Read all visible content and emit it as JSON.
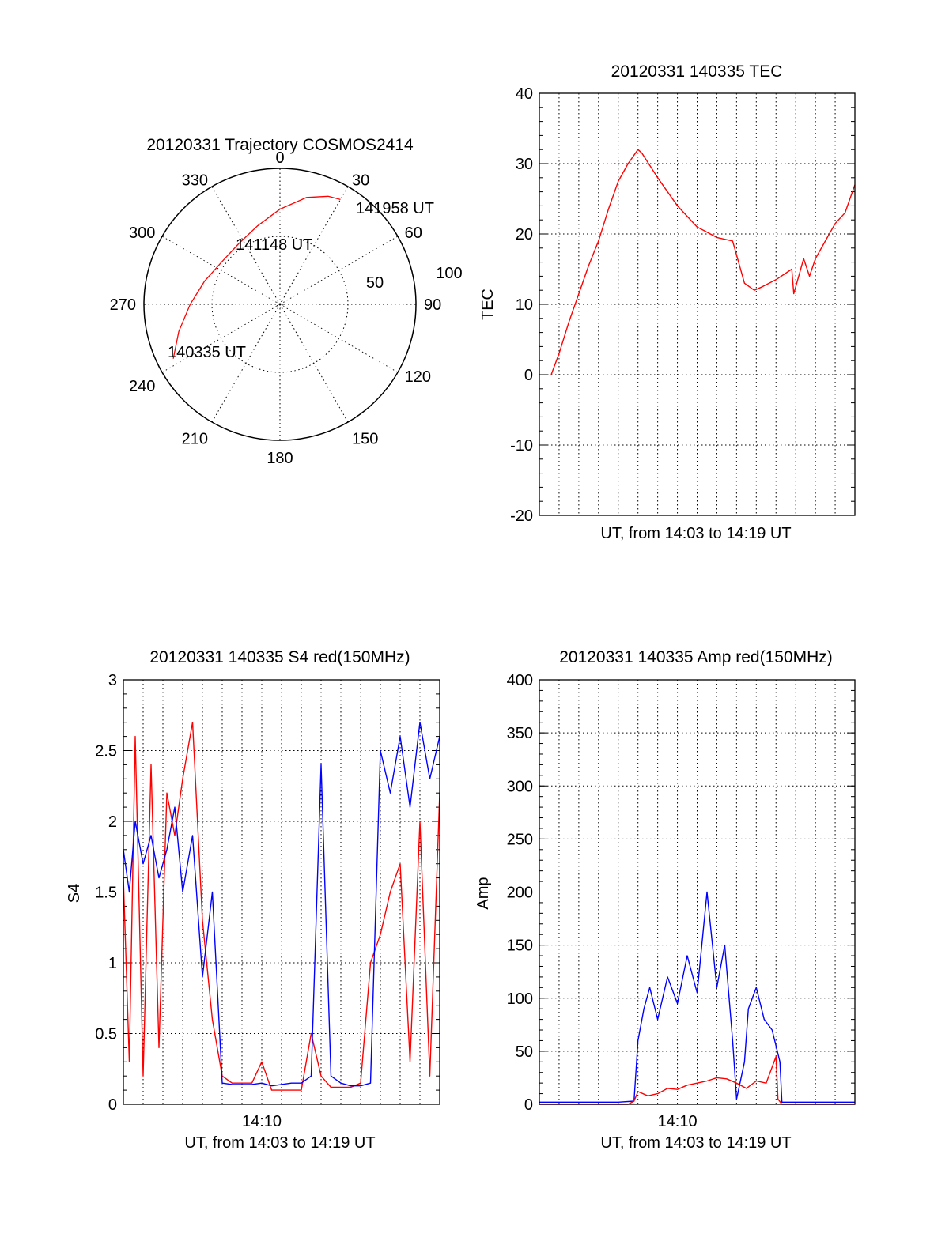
{
  "colors": {
    "red": "#ff0000",
    "blue": "#0000ff",
    "axis": "#000000",
    "background": "#ffffff"
  },
  "chart_data": [
    {
      "id": "trajectory",
      "type": "polar",
      "title": "20120331 Trajectory COSMOS2414",
      "azimuth_labels": [
        "0",
        "30",
        "60",
        "90",
        "120",
        "150",
        "180",
        "210",
        "240",
        "270",
        "300",
        "330"
      ],
      "radial_labels": [
        "50",
        "100"
      ],
      "radial_range": [
        0,
        100
      ],
      "grid": true,
      "series": [
        {
          "color": "red",
          "points": [
            {
              "az": 243,
              "r": 88
            },
            {
              "az": 255,
              "r": 77
            },
            {
              "az": 270,
              "r": 66
            },
            {
              "az": 287,
              "r": 58
            },
            {
              "az": 306,
              "r": 53
            },
            {
              "az": 326,
              "r": 54
            },
            {
              "az": 344,
              "r": 60
            },
            {
              "az": 360,
              "r": 70
            },
            {
              "az": 374,
              "r": 81
            },
            {
              "az": 384,
              "r": 87
            },
            {
              "az": 390,
              "r": 89
            }
          ]
        }
      ],
      "annotations": [
        "141958 UT",
        "141148 UT",
        "140335 UT"
      ]
    },
    {
      "id": "tec",
      "type": "line",
      "title": "20120331 140335 TEC",
      "xlabel": "UT, from 14:03 to 14:19 UT",
      "ylabel": "TEC",
      "ylim": [
        -20,
        40
      ],
      "yticks": [
        "40",
        "30",
        "20",
        "10",
        "0",
        "-10",
        "-20"
      ],
      "xlim_minutes": [
        0,
        16
      ],
      "grid": true,
      "series": [
        {
          "color": "red",
          "x": [
            0.6,
            1.0,
            1.5,
            2.0,
            2.5,
            3.0,
            3.5,
            4.0,
            4.5,
            5.0,
            5.2,
            6.0,
            7.0,
            8.0,
            9.0,
            9.8,
            10.4,
            10.9,
            11.3,
            12.0,
            12.8,
            12.9,
            13.2,
            13.4,
            13.7,
            14.0,
            14.5,
            15.0,
            15.5,
            16.0
          ],
          "y": [
            0.0,
            3.0,
            7.5,
            11.5,
            15.5,
            19.0,
            23.5,
            27.5,
            30.0,
            32.0,
            31.5,
            28.0,
            24.0,
            21.0,
            19.5,
            19.0,
            13.0,
            12.0,
            12.5,
            13.5,
            15.0,
            11.5,
            14.5,
            16.5,
            14.0,
            16.5,
            19.0,
            21.5,
            23.0,
            27.0
          ]
        }
      ]
    },
    {
      "id": "s4",
      "type": "line",
      "title": "20120331 140335 S4 red(150MHz)",
      "xlabel": "UT, from 14:03 to 14:19 UT",
      "ylabel": "S4",
      "ylim": [
        0,
        3
      ],
      "yticks": [
        "3",
        "2.5",
        "2",
        "1.5",
        "1",
        "0.5",
        "0"
      ],
      "xtick_labels": [
        "14:10"
      ],
      "xlim_minutes": [
        0,
        16
      ],
      "grid": true,
      "series": [
        {
          "color": "red",
          "x": [
            0.0,
            0.3,
            0.6,
            1.0,
            1.4,
            1.8,
            2.2,
            2.6,
            3.0,
            3.5,
            4.0,
            4.5,
            5.0,
            5.5,
            6.0,
            6.5,
            7.0,
            7.5,
            8.0,
            8.5,
            9.0,
            9.5,
            10.0,
            10.5,
            11.0,
            11.5,
            12.0,
            12.5,
            13.0,
            13.5,
            14.0,
            14.5,
            15.0,
            15.5,
            16.0
          ],
          "y": [
            1.6,
            0.3,
            2.6,
            0.2,
            2.4,
            0.4,
            2.2,
            1.9,
            2.3,
            2.7,
            1.3,
            0.6,
            0.2,
            0.15,
            0.15,
            0.15,
            0.3,
            0.1,
            0.1,
            0.1,
            0.1,
            0.5,
            0.2,
            0.12,
            0.12,
            0.12,
            0.15,
            1.0,
            1.2,
            1.5,
            1.7,
            0.3,
            2.0,
            0.2,
            2.2
          ]
        },
        {
          "color": "blue",
          "x": [
            0.0,
            0.3,
            0.6,
            1.0,
            1.4,
            1.8,
            2.2,
            2.6,
            3.0,
            3.5,
            4.0,
            4.5,
            5.0,
            5.5,
            6.0,
            6.5,
            7.0,
            7.5,
            8.0,
            8.5,
            9.0,
            9.5,
            10.0,
            10.5,
            11.0,
            11.5,
            12.0,
            12.5,
            13.0,
            13.5,
            14.0,
            14.5,
            15.0,
            15.5,
            16.0
          ],
          "y": [
            1.8,
            1.5,
            2.0,
            1.7,
            1.9,
            1.6,
            1.8,
            2.1,
            1.5,
            1.9,
            0.9,
            1.5,
            0.15,
            0.14,
            0.14,
            0.14,
            0.15,
            0.13,
            0.14,
            0.15,
            0.15,
            0.2,
            2.4,
            0.2,
            0.15,
            0.13,
            0.13,
            0.15,
            2.5,
            2.2,
            2.6,
            2.1,
            2.7,
            2.3,
            2.6
          ]
        }
      ]
    },
    {
      "id": "amp",
      "type": "line",
      "title": "20120331 140335 Amp red(150MHz)",
      "xlabel": "UT, from 14:03 to 14:19 UT",
      "ylabel": "Amp",
      "ylim": [
        0,
        400
      ],
      "yticks": [
        "400",
        "350",
        "300",
        "250",
        "200",
        "150",
        "100",
        "50",
        "0"
      ],
      "xtick_labels": [
        "14:10"
      ],
      "xlim_minutes": [
        0,
        16
      ],
      "grid": true,
      "series": [
        {
          "color": "blue",
          "x": [
            0.0,
            2.0,
            4.0,
            4.8,
            5.0,
            5.3,
            5.6,
            6.0,
            6.5,
            7.0,
            7.5,
            8.0,
            8.5,
            9.0,
            9.4,
            9.8,
            10.0,
            10.4,
            10.6,
            11.0,
            11.4,
            11.8,
            12.0,
            12.2,
            12.3,
            13.0,
            14.0,
            16.0
          ],
          "y": [
            2,
            2,
            2,
            3,
            60,
            90,
            110,
            80,
            120,
            95,
            140,
            105,
            200,
            110,
            150,
            60,
            5,
            40,
            90,
            110,
            80,
            70,
            55,
            40,
            2,
            2,
            2,
            2
          ]
        },
        {
          "color": "red",
          "x": [
            0.0,
            4.5,
            4.8,
            5.0,
            5.5,
            6.0,
            6.5,
            7.0,
            7.5,
            8.0,
            8.5,
            9.0,
            9.5,
            10.0,
            10.5,
            11.0,
            11.5,
            11.8,
            12.0,
            12.1,
            12.3,
            16.0
          ],
          "y": [
            0,
            0,
            3,
            12,
            8,
            10,
            15,
            14,
            18,
            20,
            22,
            25,
            24,
            20,
            15,
            22,
            20,
            35,
            45,
            5,
            0,
            0
          ]
        }
      ]
    }
  ]
}
